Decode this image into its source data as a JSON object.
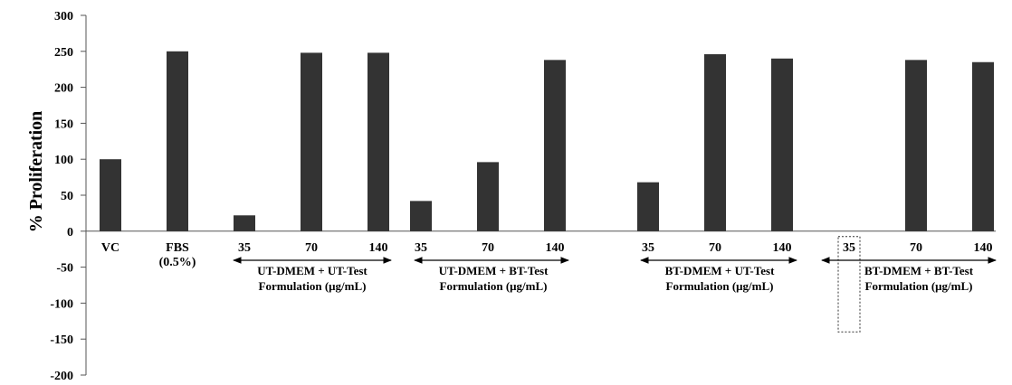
{
  "chart_data": {
    "type": "bar",
    "title": "",
    "xlabel": "",
    "ylabel": "% Proliferation",
    "ylim": [
      -200,
      300
    ],
    "yticks": [
      "300",
      "250",
      "200",
      "150",
      "100",
      "50",
      "0",
      "-50",
      "-100",
      "-150",
      "-200"
    ],
    "ytick_values": [
      300,
      250,
      200,
      150,
      100,
      50,
      0,
      -50,
      -100,
      -150,
      -200
    ],
    "categories": [
      "VC",
      "FBS (0.5%)",
      "35",
      "70",
      "140",
      "35",
      "70",
      "140",
      "35",
      "70",
      "140",
      "35",
      "70",
      "140"
    ],
    "values": [
      100,
      250,
      22,
      248,
      248,
      42,
      96,
      238,
      68,
      246,
      240,
      0,
      238,
      235
    ],
    "bar_color": "#333333",
    "grid": false,
    "category_labels": {
      "vc": "VC",
      "fbs": [
        "FBS",
        "(0.5%)"
      ]
    },
    "groups": [
      {
        "lines": [
          "UT-DMEM + UT-Test",
          "Formulation (μg/mL)"
        ]
      },
      {
        "lines": [
          "UT-DMEM + BT-Test",
          "Formulation (μg/mL)"
        ]
      },
      {
        "lines": [
          "BT-DMEM + UT-Test",
          "Formulation (μg/mL)"
        ]
      },
      {
        "lines": [
          "BT-DMEM + BT-Test",
          "Formulation (μg/mL)"
        ]
      }
    ],
    "highlight": {
      "category_index": 11,
      "style": "dotted-box"
    }
  }
}
